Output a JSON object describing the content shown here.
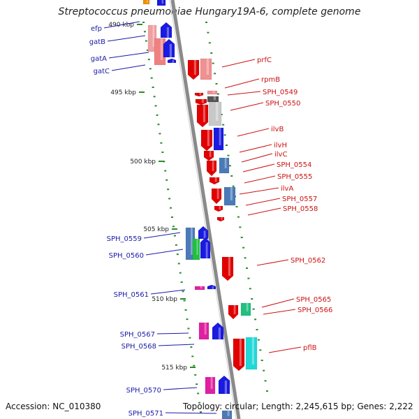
{
  "title": "Streptococcus pneumoniae Hungary19A-6, complete genome",
  "footer": {
    "accession": "Accession: NC_010380",
    "summary": "Topology: circular; Length: 2,245,615 bp; Genes: 2,222"
  },
  "colors": {
    "backbone": "#8a8a8a",
    "tick": "#2a8a2a",
    "left_label": "#1a1aa8",
    "right_label": "#cc1111"
  },
  "ticks": [
    {
      "label": "490 kbp"
    },
    {
      "label": "495 kbp"
    },
    {
      "label": "500 kbp"
    },
    {
      "label": "505 kbp"
    },
    {
      "label": "510 kbp"
    },
    {
      "label": "515 kbp"
    }
  ],
  "left_labels": [
    "efp",
    "gatB",
    "gatA",
    "gatC",
    "SPH_0559",
    "SPH_0560",
    "SPH_0561",
    "SPH_0567",
    "SPH_0568",
    "SPH_0570",
    "SPH_0571"
  ],
  "right_labels": [
    "prfC",
    "rpmB",
    "SPH_0549",
    "SPH_0550",
    "ilvB",
    "ilvH",
    "ilvC",
    "SPH_0554",
    "SPH_0555",
    "ilvA",
    "SPH_0557",
    "SPH_0558",
    "SPH_0562",
    "SPH_0565",
    "SPH_0566",
    "pflB"
  ]
}
